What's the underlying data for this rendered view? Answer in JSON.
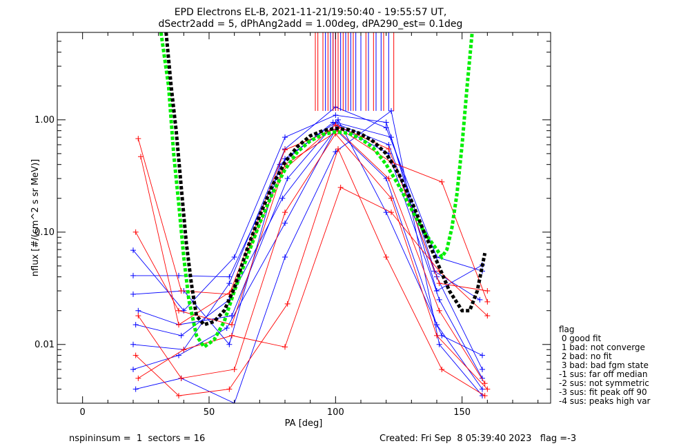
{
  "chart_data": {
    "type": "line",
    "title": "EPD Electrons EL-B, 2021-11-21/19:50:40 - 19:55:57 UT,",
    "subtitle": "dSectr2add = 5, dPhAng2add = 1.00deg, dPA290_est=   0.1deg",
    "xlabel": "PA [deg]",
    "ylabel": "nflux [#/(cm^2 s sr MeV)]",
    "x_scale": "linear",
    "y_scale": "log",
    "xlim": [
      -10,
      185
    ],
    "ylim": [
      0.003,
      6.0
    ],
    "x_ticks": [
      0,
      50,
      100,
      150
    ],
    "x_tick_labels": [
      "0",
      "50",
      "100",
      "150"
    ],
    "y_ticks": [
      0.01,
      0.1,
      1.0
    ],
    "y_tick_labels": [
      "0.01",
      "0.10",
      "1.00"
    ],
    "grid": false,
    "legend_position": "right-outside",
    "series": [
      {
        "color": "#0000ff",
        "values": [
          [
            20,
            0.069
          ],
          [
            40,
            0.02
          ],
          [
            60,
            0.06
          ],
          [
            80,
            0.7
          ],
          [
            100,
            1.1
          ],
          [
            120,
            0.95
          ],
          [
            140,
            0.04
          ],
          [
            158,
            0.006
          ]
        ]
      },
      {
        "color": "#0000ff",
        "values": [
          [
            20,
            0.041
          ],
          [
            38,
            0.041
          ],
          [
            58,
            0.04
          ],
          [
            80,
            0.45
          ],
          [
            100,
            0.95
          ],
          [
            122,
            0.7
          ],
          [
            140,
            0.03
          ],
          [
            158,
            0.051
          ]
        ]
      },
      {
        "color": "#0000ff",
        "values": [
          [
            21,
            0.015
          ],
          [
            39,
            0.012
          ],
          [
            58,
            0.025
          ],
          [
            79,
            0.2
          ],
          [
            101,
            0.88
          ],
          [
            121,
            0.5
          ],
          [
            141,
            0.025
          ],
          [
            158,
            0.005
          ]
        ]
      },
      {
        "color": "#0000ff",
        "values": [
          [
            20,
            0.006
          ],
          [
            38,
            0.008
          ],
          [
            57,
            0.014
          ],
          [
            80,
            0.12
          ],
          [
            100,
            0.82
          ],
          [
            120,
            0.3
          ],
          [
            140,
            0.015
          ],
          [
            158,
            0.004
          ]
        ]
      },
      {
        "color": "#0000ff",
        "values": [
          [
            21,
            0.004
          ],
          [
            39,
            0.005
          ],
          [
            60,
            0.003
          ],
          [
            80,
            0.06
          ],
          [
            100,
            0.52
          ],
          [
            122,
            1.2
          ],
          [
            141,
            0.01
          ],
          [
            158,
            0.0035
          ]
        ]
      },
      {
        "color": "#0000ff",
        "values": [
          [
            20,
            0.028
          ],
          [
            40,
            0.03
          ],
          [
            58,
            0.01
          ],
          [
            78,
            0.4
          ],
          [
            99,
            0.95
          ],
          [
            121,
            0.6
          ],
          [
            139,
            0.045
          ],
          [
            157,
            0.025
          ]
        ]
      },
      {
        "color": "#0000ff",
        "values": [
          [
            22,
            0.02
          ],
          [
            38,
            0.015
          ],
          [
            59,
            0.018
          ],
          [
            81,
            0.3
          ],
          [
            101,
            1.0
          ],
          [
            120,
            0.15
          ],
          [
            142,
            0.012
          ],
          [
            158,
            0.008
          ]
        ]
      },
      {
        "color": "#0000ff",
        "values": [
          [
            20,
            0.01
          ],
          [
            40,
            0.009
          ],
          [
            58,
            0.035
          ],
          [
            80,
            0.55
          ],
          [
            100,
            1.3
          ],
          [
            120,
            0.85
          ],
          [
            140,
            0.06
          ],
          [
            158,
            0.045
          ]
        ]
      },
      {
        "color": "#ff0000",
        "values": [
          [
            22,
            0.68
          ],
          [
            39,
            0.03
          ],
          [
            58,
            0.028
          ],
          [
            80,
            0.54
          ],
          [
            101,
            0.85
          ],
          [
            122,
            0.42
          ],
          [
            142,
            0.28
          ],
          [
            160,
            0.024
          ]
        ]
      },
      {
        "color": "#ff0000",
        "values": [
          [
            21,
            0.1
          ],
          [
            38,
            0.02
          ],
          [
            59,
            0.015
          ],
          [
            80,
            0.4
          ],
          [
            101,
            0.8
          ],
          [
            121,
            0.3
          ],
          [
            141,
            0.02
          ],
          [
            159,
            0.0045
          ]
        ]
      },
      {
        "color": "#ff0000",
        "values": [
          [
            22,
            0.018
          ],
          [
            39,
            0.005
          ],
          [
            60,
            0.006
          ],
          [
            80,
            0.15
          ],
          [
            100,
            0.75
          ],
          [
            122,
            0.2
          ],
          [
            140,
            0.012
          ],
          [
            160,
            0.004
          ]
        ]
      },
      {
        "color": "#ff0000",
        "values": [
          [
            21,
            0.008
          ],
          [
            38,
            0.0035
          ],
          [
            58,
            0.004
          ],
          [
            81,
            0.023
          ],
          [
            101,
            0.55
          ],
          [
            120,
            0.06
          ],
          [
            142,
            0.006
          ],
          [
            159,
            0.0035
          ]
        ]
      },
      {
        "color": "#ff0000",
        "values": [
          [
            22,
            0.005
          ],
          [
            40,
            0.009
          ],
          [
            59,
            0.012
          ],
          [
            80,
            0.0095
          ],
          [
            102,
            0.25
          ],
          [
            122,
            0.15
          ],
          [
            141,
            0.045
          ],
          [
            160,
            0.018
          ]
        ]
      },
      {
        "color": "#ff0000",
        "values": [
          [
            23,
            0.47
          ],
          [
            38,
            0.015
          ],
          [
            59,
            0.03
          ],
          [
            79,
            0.35
          ],
          [
            100,
            0.9
          ],
          [
            121,
            0.55
          ],
          [
            141,
            0.035
          ],
          [
            160,
            0.03
          ]
        ]
      }
    ],
    "fit_lines": [
      {
        "color": "#00ee00",
        "style": "dashed",
        "values": [
          [
            31,
            6.0
          ],
          [
            34,
            2.0
          ],
          [
            36,
            0.5
          ],
          [
            38,
            0.18
          ],
          [
            40,
            0.06
          ],
          [
            42,
            0.025
          ],
          [
            45,
            0.012
          ],
          [
            48,
            0.0095
          ],
          [
            52,
            0.011
          ],
          [
            56,
            0.016
          ],
          [
            60,
            0.03
          ],
          [
            65,
            0.06
          ],
          [
            70,
            0.12
          ],
          [
            75,
            0.22
          ],
          [
            80,
            0.36
          ],
          [
            85,
            0.52
          ],
          [
            90,
            0.65
          ],
          [
            95,
            0.74
          ],
          [
            100,
            0.78
          ],
          [
            105,
            0.76
          ],
          [
            110,
            0.68
          ],
          [
            115,
            0.56
          ],
          [
            120,
            0.4
          ],
          [
            125,
            0.26
          ],
          [
            130,
            0.16
          ],
          [
            135,
            0.1
          ],
          [
            140,
            0.07
          ],
          [
            142,
            0.06
          ],
          [
            144,
            0.07
          ],
          [
            146,
            0.11
          ],
          [
            148,
            0.22
          ],
          [
            150,
            0.6
          ],
          [
            152,
            2.0
          ],
          [
            154,
            6.0
          ]
        ]
      },
      {
        "color": "#000000",
        "style": "dashed",
        "values": [
          [
            33,
            6.0
          ],
          [
            35,
            2.0
          ],
          [
            37,
            0.8
          ],
          [
            39,
            0.25
          ],
          [
            41,
            0.08
          ],
          [
            43,
            0.035
          ],
          [
            45,
            0.018
          ],
          [
            48,
            0.015
          ],
          [
            52,
            0.016
          ],
          [
            56,
            0.02
          ],
          [
            60,
            0.032
          ],
          [
            65,
            0.07
          ],
          [
            70,
            0.14
          ],
          [
            75,
            0.26
          ],
          [
            80,
            0.42
          ],
          [
            85,
            0.58
          ],
          [
            90,
            0.72
          ],
          [
            95,
            0.8
          ],
          [
            100,
            0.84
          ],
          [
            105,
            0.82
          ],
          [
            110,
            0.75
          ],
          [
            115,
            0.64
          ],
          [
            120,
            0.5
          ],
          [
            125,
            0.33
          ],
          [
            130,
            0.19
          ],
          [
            135,
            0.1
          ],
          [
            140,
            0.055
          ],
          [
            145,
            0.03
          ],
          [
            150,
            0.02
          ],
          [
            153,
            0.02
          ],
          [
            156,
            0.03
          ],
          [
            159,
            0.065
          ]
        ]
      }
    ],
    "markers": {
      "blue_x": [
        95,
        96,
        98,
        99,
        100,
        101,
        102,
        104,
        106,
        108,
        110,
        113,
        116,
        118,
        121
      ],
      "red_x": [
        92,
        93,
        95,
        97,
        99,
        100,
        101,
        103,
        105,
        107,
        112,
        115,
        119,
        123
      ],
      "blue_color": "#0000ff",
      "red_color": "#ff0000"
    },
    "legend": {
      "title": "flag",
      "entries": [
        " 0 good fit",
        " 1 bad: not converge",
        " 2 bad: no fit",
        " 3 bad: bad fgm state",
        "-1 sus: far off median",
        "-2 sus: not symmetric",
        "-3 sus: fit peak off 90",
        "-4 sus: peaks high var"
      ]
    },
    "footer_left": "nspininsum =  1  sectors = 16",
    "footer_right": "Created: Fri Sep  8 05:39:40 2023   flag =-3"
  }
}
